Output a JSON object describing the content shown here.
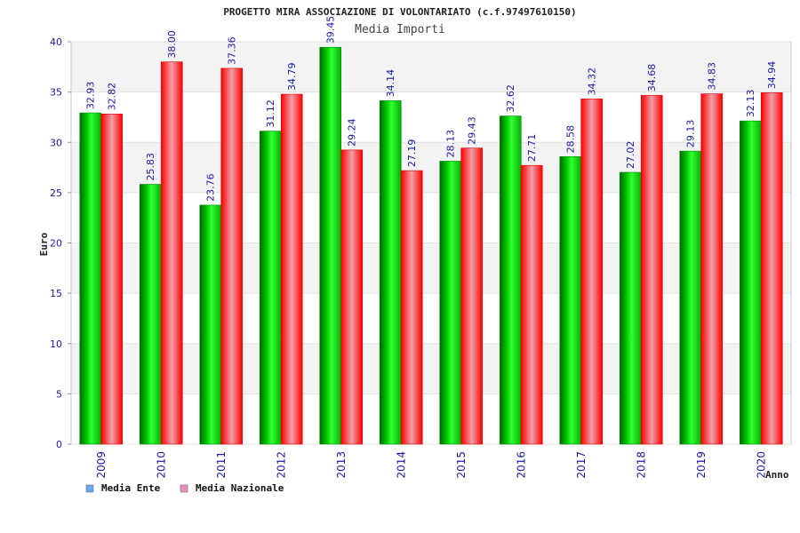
{
  "chart_data": {
    "type": "bar",
    "title": "PROGETTO MIRA ASSOCIAZIONE DI VOLONTARIATO (c.f.97497610150)",
    "subtitle": "Media Importi",
    "xlabel": "Anno",
    "ylabel": "Euro",
    "ylim": [
      0,
      40
    ],
    "yticks": [
      0,
      5,
      10,
      15,
      20,
      25,
      30,
      35,
      40
    ],
    "grid": true,
    "legend_position": "bottom-left",
    "categories": [
      "2009",
      "2010",
      "2011",
      "2012",
      "2013",
      "2014",
      "2015",
      "2016",
      "2017",
      "2018",
      "2019",
      "2020"
    ],
    "series": [
      {
        "name": "Media Ente",
        "color": "#00c000",
        "legend_color": "#6aaaf0",
        "values": [
          32.93,
          25.83,
          23.76,
          31.12,
          39.45,
          34.14,
          28.13,
          32.62,
          28.58,
          27.02,
          29.13,
          32.13
        ],
        "labels": [
          "32.93",
          "25.83",
          "23.76",
          "31.12",
          "39.45",
          "34.14",
          "28.13",
          "32.62",
          "28.58",
          "27.02",
          "29.13",
          "32.13"
        ]
      },
      {
        "name": "Media Nazionale",
        "color": "#ff2020",
        "legend_color": "#e890c0",
        "values": [
          32.82,
          38.0,
          37.36,
          34.79,
          29.24,
          27.19,
          29.43,
          27.71,
          34.32,
          34.68,
          34.83,
          34.94
        ],
        "labels": [
          "32.82",
          "38.00",
          "37.36",
          "34.79",
          "29.24",
          "27.19",
          "29.43",
          "27.71",
          "34.32",
          "34.68",
          "34.83",
          "34.94"
        ]
      }
    ]
  }
}
